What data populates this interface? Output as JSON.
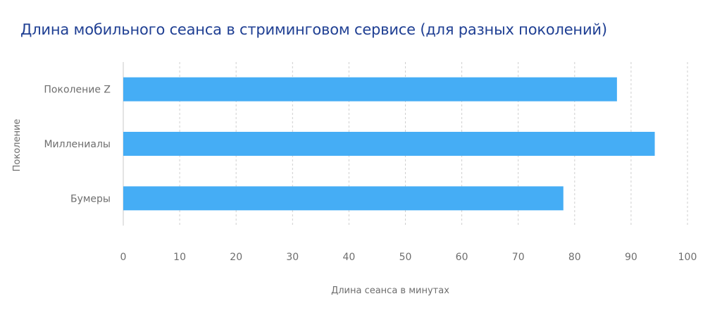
{
  "chart_data": {
    "type": "bar",
    "orientation": "horizontal",
    "title": "Длина мобильного сеанса в стриминговом сервисе (для разных поколений)",
    "categories": [
      "Поколение Z",
      "Миллениалы",
      "Бумеры"
    ],
    "values": [
      87.5,
      94.2,
      78
    ],
    "xlabel": "Длина сеанса в минутах",
    "ylabel": "Поколение",
    "xlim": [
      0,
      100
    ],
    "xticks": [
      0,
      10,
      20,
      30,
      40,
      50,
      60,
      70,
      80,
      90,
      100
    ],
    "grid": "vertical dashed",
    "bar_color": "#45adf5",
    "title_color": "#1f3f93",
    "legend": "none"
  }
}
